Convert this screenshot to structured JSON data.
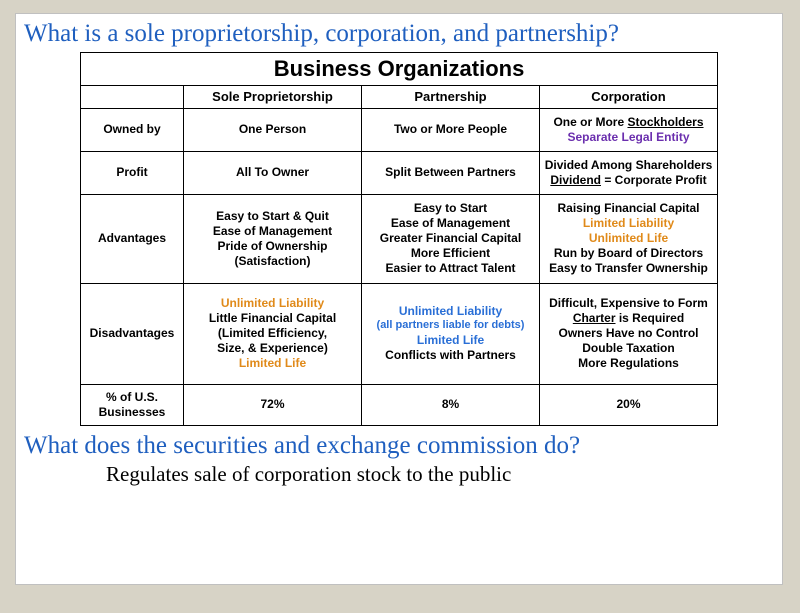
{
  "question_top": "What is a sole proprietorship, corporation, and partnership?",
  "question_bottom": "What does the securities and exchange commission do?",
  "answer": "Regulates sale of corporation stock to the public",
  "table": {
    "title": "Business Organizations",
    "columns": [
      "Sole Proprietorship",
      "Partnership",
      "Corporation"
    ],
    "rows": {
      "owned_by": {
        "label": "Owned by",
        "sole": "One Person",
        "partner": "Two or More People",
        "corp_line1": "One or More ",
        "corp_line1_u": "Stockholders",
        "corp_line2": "Separate Legal Entity"
      },
      "profit": {
        "label": "Profit",
        "sole": "All To Owner",
        "partner": "Split Between Partners",
        "corp_line1": "Divided Among Shareholders",
        "corp_line2_u": "Dividend",
        "corp_line2_rest": " = Corporate Profit"
      },
      "advantages": {
        "label": "Advantages",
        "sole_1": "Easy to Start & Quit",
        "sole_2": "Ease of Management",
        "sole_3": "Pride of Ownership",
        "sole_4": "(Satisfaction)",
        "part_1": "Easy to Start",
        "part_2": "Ease of Management",
        "part_3": "Greater Financial Capital",
        "part_4": "More Efficient",
        "part_5": "Easier to Attract Talent",
        "corp_1": "Raising Financial Capital",
        "corp_2": "Limited Liability",
        "corp_3": "Unlimited Life",
        "corp_4": "Run by Board of Directors",
        "corp_5": "Easy to Transfer Ownership"
      },
      "disadvantages": {
        "label": "Disadvantages",
        "sole_1": "Unlimited Liability",
        "sole_2": "Little Financial Capital",
        "sole_3": "(Limited Efficiency,",
        "sole_4": "Size, & Experience)",
        "sole_5": "Limited Life",
        "part_1": "Unlimited Liability",
        "part_2": "(all partners liable for debts)",
        "part_3": "Limited Life",
        "part_4": "Conflicts with Partners",
        "corp_1": "Difficult, Expensive to Form",
        "corp_2_u": "Charter",
        "corp_2_rest": " is Required",
        "corp_3": "Owners Have no Control",
        "corp_4": "Double Taxation",
        "corp_5": "More Regulations"
      },
      "percent": {
        "label_1": "% of U.S.",
        "label_2": "Businesses",
        "sole": "72%",
        "partner": "8%",
        "corp": "20%"
      }
    }
  },
  "style": {
    "background": "#d7d3c6",
    "slide_bg": "#ffffff",
    "question_color": "#1f5fbf",
    "orange": "#e08a1a",
    "blue": "#2a6fd6",
    "purple": "#6b2fae",
    "border": "#000000"
  }
}
